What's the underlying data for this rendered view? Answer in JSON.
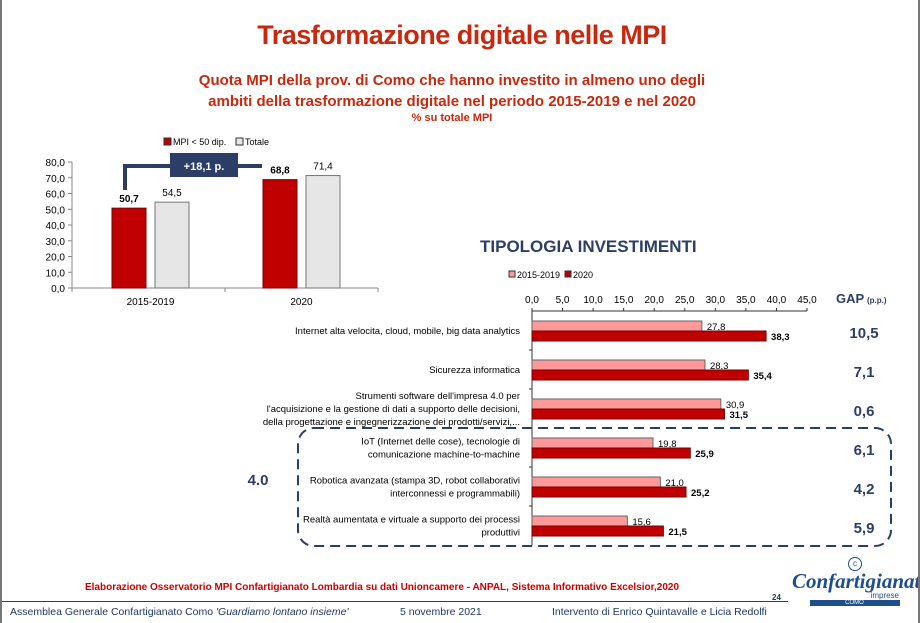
{
  "title": "Trasformazione digitale nelle MPI",
  "subtitle_line1": "Quota MPI della prov. di Como  che hanno investito in almeno uno degli",
  "subtitle_line2": "ambiti della trasformazione digitale nel periodo 2015-2019 e nel 2020",
  "subtitle_line3": "% su totale MPI",
  "section_title": "TIPOLOGIA INVESTIMENTI",
  "gap_header": "GAP",
  "gap_unit": "(p.p.)",
  "group_label": "4.0",
  "source": "Elaborazione Osservatorio MPI Confartigianato Lombardia su dati Unioncamere - ANPAL, Sistema Informativo Excelsior,2020",
  "footer": {
    "event": "Assemblea Generale Confartigianato Como ",
    "motto": "'Guardiamo lontano insieme'",
    "date": "5 novembre 2021",
    "speakers": "Intervento di Enrico Quintavalle e Licia Redolfi",
    "page": "24"
  },
  "logo": {
    "name": "Confartigianato",
    "sub": "imprese",
    "city": "COMO"
  },
  "chart_data": [
    {
      "type": "bar",
      "categories": [
        "2015-2019",
        "2020"
      ],
      "series": [
        {
          "name": "MPI < 50 dip.",
          "values": [
            50.7,
            68.8
          ],
          "color": "#c00000"
        },
        {
          "name": "Totale",
          "values": [
            54.5,
            71.4
          ],
          "color": "#e6e6e6"
        }
      ],
      "ylim": [
        0,
        80
      ],
      "yticks": [
        "0,0",
        "10,0",
        "20,0",
        "30,0",
        "40,0",
        "50,0",
        "60,0",
        "70,0",
        "80,0"
      ],
      "value_labels": [
        [
          "50,7",
          "68,8"
        ],
        [
          "54,5",
          "71,4"
        ]
      ],
      "legend": "top",
      "annotation": "+18,1 p."
    },
    {
      "type": "bar",
      "orientation": "horizontal",
      "categories": [
        [
          "Internet alta velocita, cloud, mobile, big data analytics"
        ],
        [
          "Sicurezza informatica"
        ],
        [
          "Strumenti software dell'impresa 4.0 per",
          "l'acquisizione e la gestione di dati a supporto delle decisioni,",
          "della progettazione e ingegnerizzazione dei prodotti/servizi,..."
        ],
        [
          "IoT (Internet delle cose), tecnologie di",
          "comunicazione machine-to-machine"
        ],
        [
          "Robotica avanzata (stampa 3D, robot collaborativi",
          "interconnessi e programmabili)"
        ],
        [
          "Realtà aumentata e virtuale a supporto dei processi",
          "produttivi"
        ]
      ],
      "series": [
        {
          "name": "2015-2019",
          "values": [
            27.8,
            28.3,
            30.9,
            19.8,
            21.0,
            15.6
          ],
          "labels": [
            "27,8",
            "28,3",
            "30,9",
            "19,8",
            "21,0",
            "15,6"
          ],
          "color": "#ff9999"
        },
        {
          "name": "2020",
          "values": [
            38.3,
            35.4,
            31.5,
            25.9,
            25.2,
            21.5
          ],
          "labels": [
            "38,3",
            "35,4",
            "31,5",
            "25,9",
            "25,2",
            "21,5"
          ],
          "color": "#c00000"
        }
      ],
      "gap": [
        "10,5",
        "7,1",
        "0,6",
        "6,1",
        "4,2",
        "5,9"
      ],
      "xlim": [
        0,
        45
      ],
      "xticks": [
        "0,0",
        "5,0",
        "10,0",
        "15,0",
        "20,0",
        "25,0",
        "30,0",
        "35,0",
        "40,0",
        "45,0"
      ],
      "legend": "top"
    }
  ]
}
